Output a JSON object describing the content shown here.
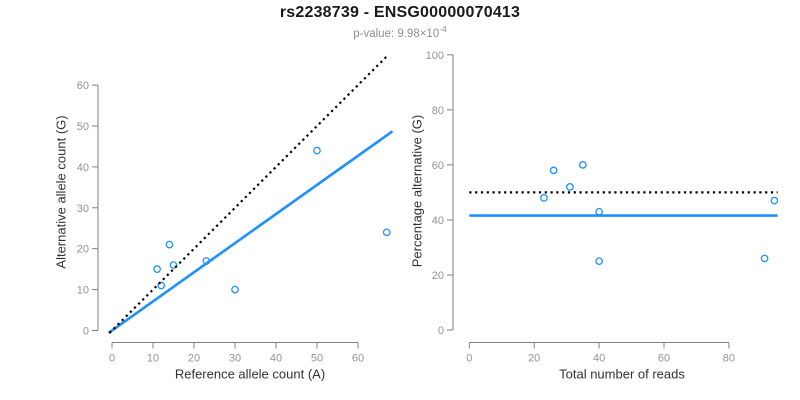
{
  "header": {
    "title": "rs2238739 - ENSG00000070413",
    "subtitle_prefix": "p-value: ",
    "subtitle_value": "9.98×10",
    "subtitle_exponent": "-4"
  },
  "colors": {
    "blue": "#1E90FF",
    "black": "#000000",
    "axis": "#808080",
    "tick_label": "#949494",
    "axis_title": "#333333",
    "title": "#1A1A1A",
    "subtitle": "#8F8F8F"
  },
  "chart_data": [
    {
      "type": "scatter",
      "name": "allele-counts",
      "xlabel": "Reference allele count (A)",
      "ylabel": "Alternative allele count (G)",
      "xticks": [
        0,
        10,
        20,
        30,
        40,
        50,
        60
      ],
      "yticks": [
        0,
        10,
        20,
        30,
        40,
        50,
        60
      ],
      "xlim": [
        -0.9,
        68.4
      ],
      "ylim": [
        -0.6,
        67.5
      ],
      "grid": false,
      "legend": "none",
      "points": [
        [
          11,
          15
        ],
        [
          12,
          11
        ],
        [
          14,
          21
        ],
        [
          15,
          16
        ],
        [
          23,
          17
        ],
        [
          30,
          10
        ],
        [
          50,
          44
        ],
        [
          67,
          24
        ]
      ],
      "lines": [
        {
          "label": "regression",
          "style": "solid",
          "color": "blue",
          "slope": 0.712,
          "intercept": 0
        },
        {
          "label": "identity",
          "style": "dotted",
          "color": "black",
          "slope": 1,
          "intercept": 0
        }
      ]
    },
    {
      "type": "scatter",
      "name": "percentage-alternative",
      "xlabel": "Total number of reads",
      "ylabel": "Percentage alternative (G)",
      "xticks": [
        0,
        20,
        40,
        60,
        80
      ],
      "yticks": [
        0,
        20,
        40,
        60,
        80,
        100
      ],
      "xlim": [
        0,
        95
      ],
      "ylim": [
        0,
        100
      ],
      "grid": false,
      "legend": "none",
      "points": [
        [
          23,
          48
        ],
        [
          26,
          58
        ],
        [
          31,
          52
        ],
        [
          35,
          60
        ],
        [
          40,
          43
        ],
        [
          40,
          25
        ],
        [
          91,
          26
        ],
        [
          94,
          47
        ]
      ],
      "lines": [
        {
          "label": "mean-percentage",
          "style": "solid",
          "color": "blue",
          "h": 41.6
        },
        {
          "label": "fifty-percent",
          "style": "dotted",
          "color": "black",
          "h": 50
        }
      ]
    }
  ]
}
